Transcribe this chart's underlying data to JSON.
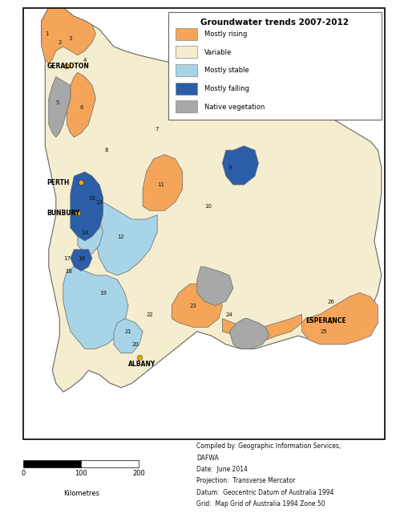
{
  "title": "Groundwater trends 2007-2012",
  "colors": {
    "mostly_rising": "#F5A55A",
    "variable": "#F5EDD0",
    "mostly_stable": "#A8D4E8",
    "mostly_falling": "#2B5DA8",
    "native_vegetation": "#A8A8A8",
    "border": "#666666",
    "background": "#FFFFFF",
    "city_marker": "#FFA500"
  },
  "legend": [
    {
      "label": "Mostly rising",
      "color": "#F5A55A"
    },
    {
      "label": "Variable",
      "color": "#F5EDD0"
    },
    {
      "label": "Mostly stable",
      "color": "#A8D4E8"
    },
    {
      "label": "Mostly falling",
      "color": "#2B5DA8"
    },
    {
      "label": "Native vegetation",
      "color": "#A8A8A8"
    }
  ],
  "metadata_text": [
    "Compiled by: Geographic Information Services,",
    "DAFWA",
    "Date:  June 2014",
    "Projection:  Transverse Mercator",
    "Datum:  Geocentric Datum of Australia 1994",
    "Grid:  Map Grid of Australia 1994 Zone 50"
  ]
}
